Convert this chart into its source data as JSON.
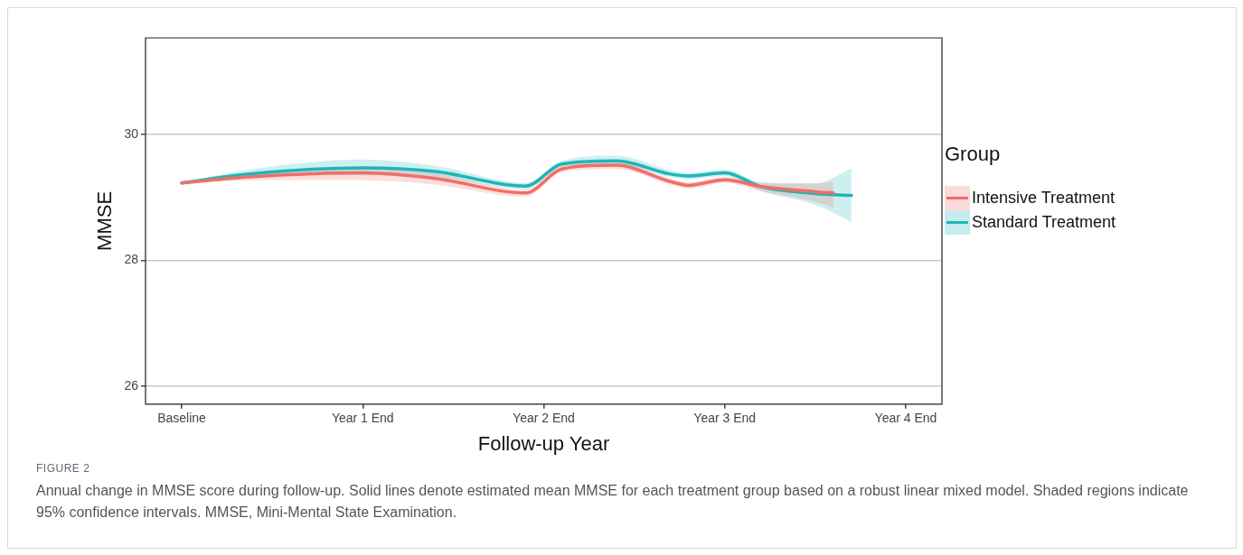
{
  "chart_data": {
    "type": "line",
    "xlabel": "Follow-up Year",
    "ylabel": "MMSE",
    "legend_title": "Group",
    "legend": "right",
    "grid": "y",
    "categories": [
      null,
      null,
      "Baseline",
      null,
      null,
      null,
      null,
      null,
      null,
      null,
      null,
      null,
      "Year 1 End",
      null,
      null,
      null,
      null,
      null,
      null,
      null,
      null,
      null,
      "Year 2 End",
      null,
      null,
      null,
      null,
      null,
      null,
      null,
      null,
      null,
      "Year 3 End",
      null,
      null,
      null,
      null,
      null,
      null,
      null,
      null,
      null,
      "Year 4 End",
      null,
      null
    ],
    "ylim": [
      25.72,
      31.53
    ],
    "yticks": [
      26,
      28,
      30
    ],
    "series": [
      {
        "name": "Intensive Treatment",
        "color": "#ef6f67",
        "values": [
          null,
          null,
          29.23,
          null,
          null,
          null,
          29.33,
          null,
          null,
          null,
          null,
          null,
          29.39,
          null,
          null,
          null,
          29.3,
          null,
          null,
          null,
          null,
          29.07,
          null,
          29.45,
          null,
          null,
          29.51,
          null,
          null,
          29.25,
          29.19,
          null,
          29.28,
          null,
          29.17,
          null,
          null,
          29.09,
          29.07,
          null,
          null,
          null,
          null,
          null,
          null
        ],
        "lower": [
          null,
          null,
          29.22,
          null,
          null,
          null,
          29.27,
          null,
          null,
          null,
          null,
          null,
          29.27,
          null,
          null,
          null,
          29.2,
          null,
          null,
          null,
          null,
          29.01,
          null,
          29.4,
          null,
          null,
          29.45,
          null,
          null,
          29.2,
          29.14,
          null,
          29.23,
          null,
          29.1,
          null,
          null,
          28.93,
          28.84,
          null,
          null,
          null,
          null,
          null,
          null
        ],
        "upper": [
          null,
          null,
          29.24,
          null,
          null,
          null,
          29.39,
          null,
          null,
          null,
          null,
          null,
          29.46,
          null,
          null,
          null,
          29.38,
          null,
          null,
          null,
          null,
          29.12,
          null,
          29.5,
          null,
          null,
          29.57,
          null,
          null,
          29.3,
          29.24,
          null,
          29.33,
          null,
          29.23,
          null,
          null,
          29.22,
          29.25,
          null,
          null,
          null,
          null,
          null,
          null
        ]
      },
      {
        "name": "Standard Treatment",
        "color": "#1fb5b9",
        "values": [
          null,
          null,
          29.23,
          null,
          null,
          null,
          29.38,
          null,
          null,
          null,
          null,
          null,
          29.47,
          null,
          null,
          null,
          29.41,
          null,
          null,
          null,
          null,
          29.18,
          null,
          29.53,
          null,
          null,
          29.58,
          null,
          null,
          29.37,
          29.34,
          null,
          29.39,
          null,
          29.17,
          null,
          null,
          29.06,
          null,
          29.03,
          null,
          null,
          null,
          null,
          null
        ],
        "lower": [
          null,
          null,
          29.22,
          null,
          null,
          null,
          29.32,
          null,
          null,
          null,
          null,
          null,
          29.35,
          null,
          null,
          null,
          29.32,
          null,
          null,
          null,
          null,
          29.13,
          null,
          29.48,
          null,
          null,
          29.52,
          null,
          null,
          29.32,
          29.29,
          null,
          29.34,
          null,
          29.1,
          null,
          null,
          28.88,
          null,
          28.61,
          null,
          null,
          null,
          null,
          null
        ],
        "upper": [
          null,
          null,
          29.24,
          null,
          null,
          null,
          29.45,
          null,
          null,
          null,
          null,
          null,
          29.6,
          null,
          null,
          null,
          29.5,
          null,
          null,
          null,
          null,
          29.23,
          null,
          29.58,
          null,
          null,
          29.66,
          null,
          null,
          29.43,
          29.39,
          null,
          29.44,
          null,
          29.24,
          null,
          null,
          29.22,
          null,
          29.46,
          null,
          null,
          null,
          null,
          null
        ]
      }
    ],
    "annotations": [
      "FIGURE 2",
      "Annual change in MMSE score during follow-up. Solid lines denote estimated mean MMSE for each treatment group based on a robust linear mixed model. Shaded regions indicate 95% confidence intervals. MMSE, Mini-Mental State Examination."
    ]
  }
}
